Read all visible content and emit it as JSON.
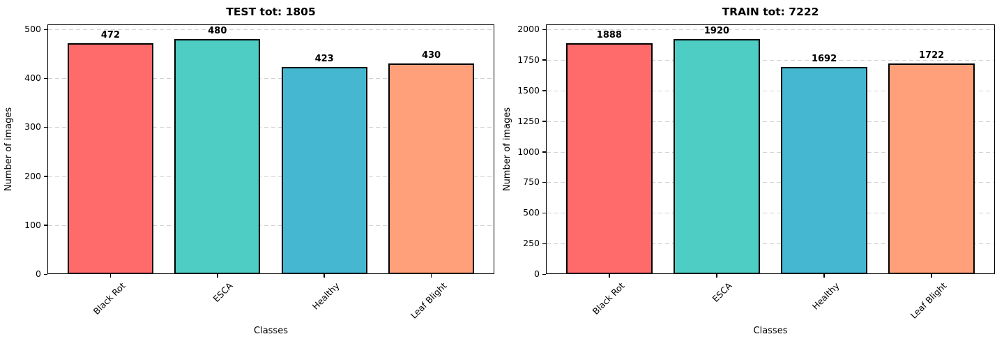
{
  "figure": {
    "background": "#ffffff",
    "grid_color": "#d2d2d2",
    "bar_edge_color": "#000000"
  },
  "chart_data": [
    {
      "type": "bar",
      "title": "TEST tot: 1805",
      "xlabel": "Classes",
      "ylabel": "Number of images",
      "categories": [
        "Black Rot",
        "ESCA",
        "Healthy",
        "Leaf Blight"
      ],
      "values": [
        472,
        480,
        423,
        430
      ],
      "bar_colors": [
        "#FF6B6B",
        "#4ECDC4",
        "#45B7D1",
        "#FFA07A"
      ],
      "yticks": [
        0,
        100,
        200,
        300,
        400,
        500
      ],
      "ylim": [
        0,
        510
      ],
      "grid": "dashed-horizontal",
      "legend": "none",
      "value_labels": "above-bars"
    },
    {
      "type": "bar",
      "title": "TRAIN tot: 7222",
      "xlabel": "Classes",
      "ylabel": "Number of images",
      "categories": [
        "Black Rot",
        "ESCA",
        "Healthy",
        "Leaf Blight"
      ],
      "values": [
        1888,
        1920,
        1692,
        1722
      ],
      "bar_colors": [
        "#FF6B6B",
        "#4ECDC4",
        "#45B7D1",
        "#FFA07A"
      ],
      "yticks": [
        0,
        250,
        500,
        750,
        1000,
        1250,
        1500,
        1750,
        2000
      ],
      "ylim": [
        0,
        2040
      ],
      "grid": "dashed-horizontal",
      "legend": "none",
      "value_labels": "above-bars"
    }
  ]
}
